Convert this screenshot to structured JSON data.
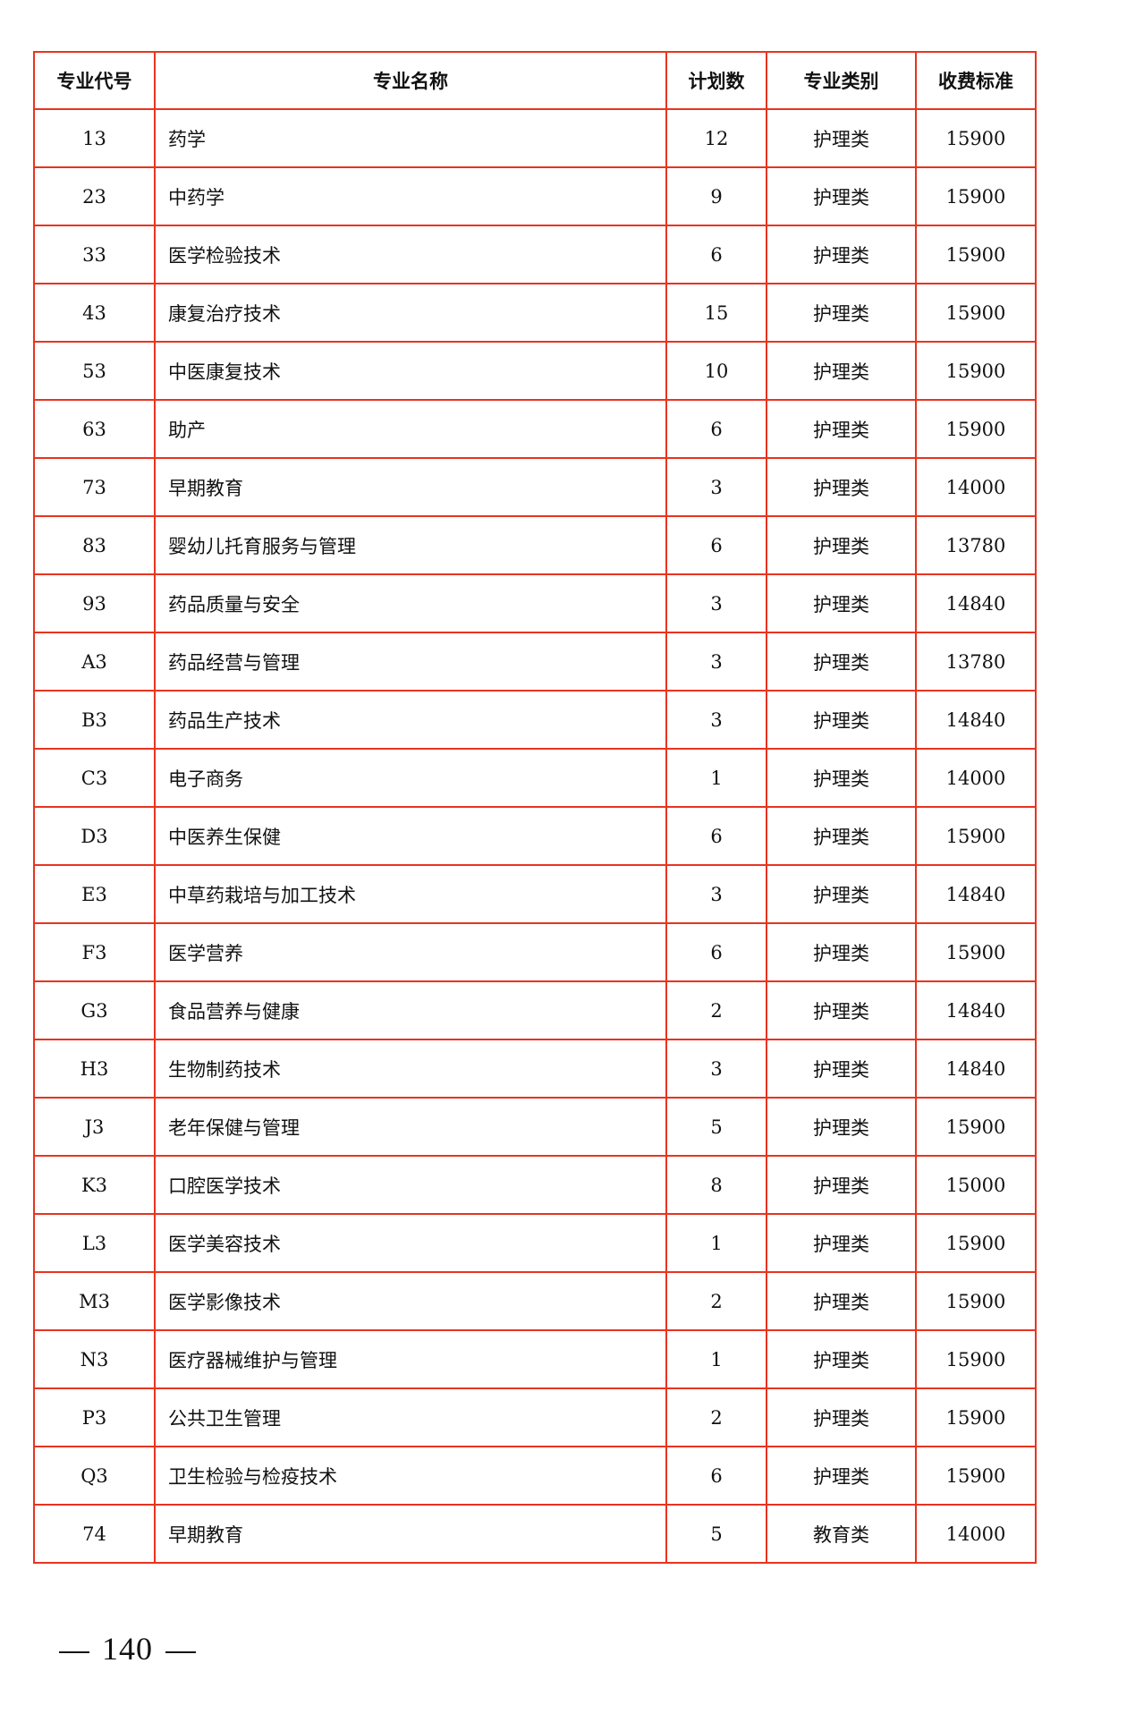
{
  "table": {
    "headers": [
      "专业代号",
      "专业名称",
      "计划数",
      "专业类别",
      "收费标准"
    ],
    "rows": [
      [
        "13",
        "药学",
        "12",
        "护理类",
        "15900"
      ],
      [
        "23",
        "中药学",
        "9",
        "护理类",
        "15900"
      ],
      [
        "33",
        "医学检验技术",
        "6",
        "护理类",
        "15900"
      ],
      [
        "43",
        "康复治疗技术",
        "15",
        "护理类",
        "15900"
      ],
      [
        "53",
        "中医康复技术",
        "10",
        "护理类",
        "15900"
      ],
      [
        "63",
        "助产",
        "6",
        "护理类",
        "15900"
      ],
      [
        "73",
        "早期教育",
        "3",
        "护理类",
        "14000"
      ],
      [
        "83",
        "婴幼儿托育服务与管理",
        "6",
        "护理类",
        "13780"
      ],
      [
        "93",
        "药品质量与安全",
        "3",
        "护理类",
        "14840"
      ],
      [
        "A3",
        "药品经营与管理",
        "3",
        "护理类",
        "13780"
      ],
      [
        "B3",
        "药品生产技术",
        "3",
        "护理类",
        "14840"
      ],
      [
        "C3",
        "电子商务",
        "1",
        "护理类",
        "14000"
      ],
      [
        "D3",
        "中医养生保健",
        "6",
        "护理类",
        "15900"
      ],
      [
        "E3",
        "中草药栽培与加工技术",
        "3",
        "护理类",
        "14840"
      ],
      [
        "F3",
        "医学营养",
        "6",
        "护理类",
        "15900"
      ],
      [
        "G3",
        "食品营养与健康",
        "2",
        "护理类",
        "14840"
      ],
      [
        "H3",
        "生物制药技术",
        "3",
        "护理类",
        "14840"
      ],
      [
        "J3",
        "老年保健与管理",
        "5",
        "护理类",
        "15900"
      ],
      [
        "K3",
        "口腔医学技术",
        "8",
        "护理类",
        "15000"
      ],
      [
        "L3",
        "医学美容技术",
        "1",
        "护理类",
        "15900"
      ],
      [
        "M3",
        "医学影像技术",
        "2",
        "护理类",
        "15900"
      ],
      [
        "N3",
        "医疗器械维护与管理",
        "1",
        "护理类",
        "15900"
      ],
      [
        "P3",
        "公共卫生管理",
        "2",
        "护理类",
        "15900"
      ],
      [
        "Q3",
        "卫生检验与检疫技术",
        "6",
        "护理类",
        "15900"
      ],
      [
        "74",
        "早期教育",
        "5",
        "教育类",
        "14000"
      ]
    ]
  },
  "page_number": "140",
  "colors": {
    "border": "#e8341f"
  }
}
